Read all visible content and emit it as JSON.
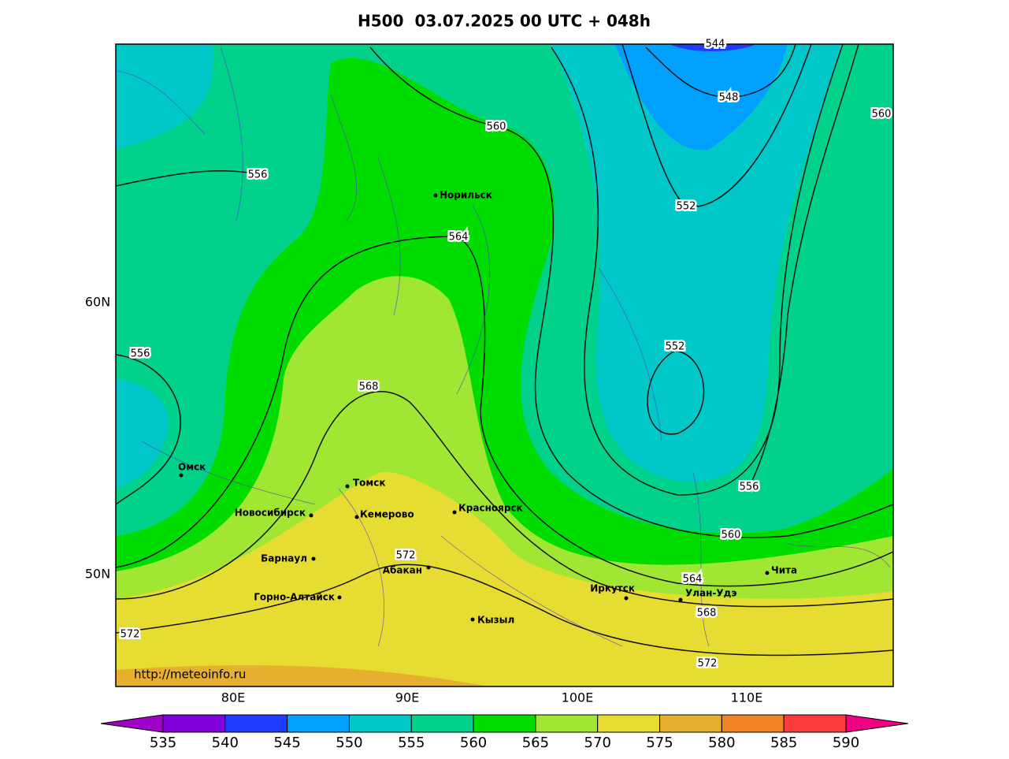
{
  "title": "H500  03.07.2025 00 UTC + 048h",
  "latitude_labels": [
    "60N",
    "50N"
  ],
  "longitude_labels": [
    "80E",
    "90E",
    "100E",
    "110E"
  ],
  "contour_labels": [
    544,
    548,
    560,
    560,
    556,
    552,
    564,
    556,
    552,
    568,
    556,
    560,
    572,
    564,
    568,
    572,
    572
  ],
  "cities": [
    "Норильск",
    "Омск",
    "Томск",
    "Новосибирск",
    "Кемерово",
    "Красноярск",
    "Барнаул",
    "Абакан",
    "Горно-Алтайск",
    "Кызыл",
    "Иркутск",
    "Улан-Удэ",
    "Чита"
  ],
  "source_url": "http://meteoinfo.ru",
  "colorbar": {
    "ticks": [
      535,
      540,
      545,
      550,
      555,
      560,
      565,
      570,
      575,
      580,
      585,
      590
    ],
    "colors": [
      "#a000c8",
      "#8200dc",
      "#1e3cff",
      "#00a0ff",
      "#00c8c8",
      "#00d28c",
      "#00dc00",
      "#a0e632",
      "#e6dc32",
      "#e6af2d",
      "#f08228",
      "#fa3c3c",
      "#f00082"
    ]
  }
}
